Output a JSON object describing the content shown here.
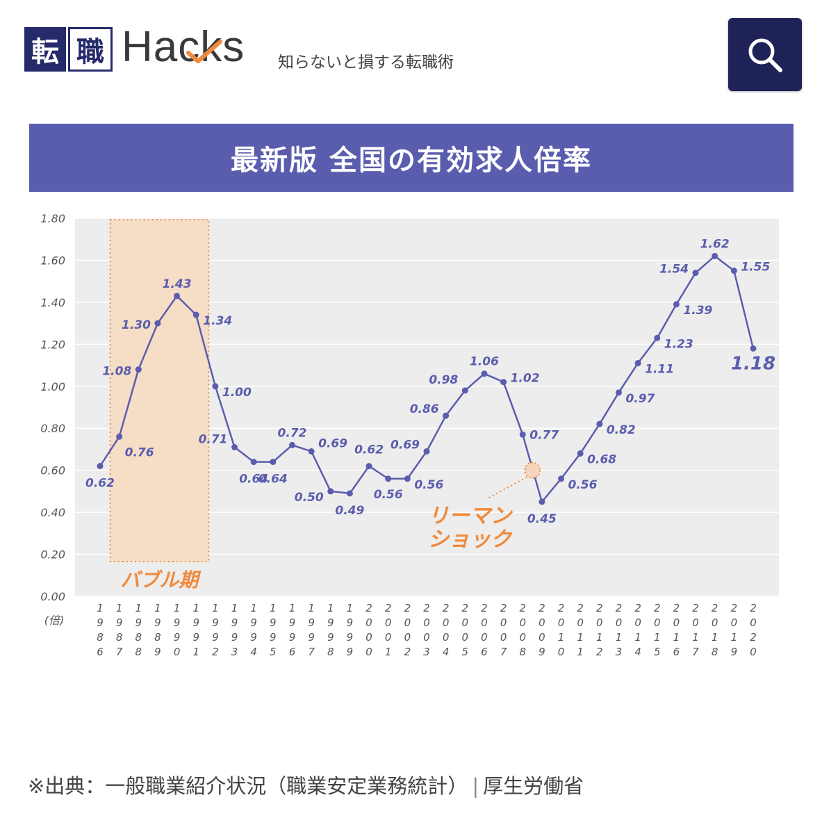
{
  "header": {
    "logo_kanji_1": "転",
    "logo_kanji_2": "職",
    "logo_word": "Hacks",
    "tagline": "知らないと損する転職術",
    "search_icon": "search-icon"
  },
  "title": "最新版 全国の有効求人倍率",
  "chart_data": {
    "type": "line",
    "ylabel": "(倍)",
    "ylim": [
      0,
      1.8
    ],
    "yticks": [
      "0.00",
      "0.20",
      "0.40",
      "0.60",
      "0.80",
      "1.00",
      "1.20",
      "1.40",
      "1.60",
      "1.80"
    ],
    "grid": true,
    "categories": [
      "1986",
      "1987",
      "1988",
      "1989",
      "1990",
      "1991",
      "1992",
      "1993",
      "1994",
      "1995",
      "1996",
      "1997",
      "1998",
      "1999",
      "2000",
      "2001",
      "2002",
      "2003",
      "2004",
      "2005",
      "2006",
      "2007",
      "2008",
      "2009",
      "2010",
      "2011",
      "2012",
      "2013",
      "2014",
      "2015",
      "2016",
      "2017",
      "2018",
      "2019",
      "2020"
    ],
    "series": [
      {
        "values": [
          0.62,
          0.76,
          1.08,
          1.3,
          1.43,
          1.34,
          1.0,
          0.71,
          0.64,
          0.64,
          0.72,
          0.69,
          0.5,
          0.49,
          0.62,
          0.56,
          0.56,
          0.69,
          0.86,
          0.98,
          1.06,
          1.02,
          0.77,
          0.45,
          0.56,
          0.68,
          0.82,
          0.97,
          1.11,
          1.23,
          1.39,
          1.54,
          1.62,
          1.55,
          1.18
        ],
        "labels": [
          "0.62",
          "0.76",
          "1.08",
          "1.30",
          "1.43",
          "1.34",
          "1.00",
          "0.71",
          "0.64",
          "0.64",
          "0.72",
          "0.69",
          "0.50",
          "0.49",
          "0.62",
          "0.56",
          "0.56",
          "0.69",
          "0.86",
          "0.98",
          "1.06",
          "1.02",
          "0.77",
          "0.45",
          "0.56",
          "0.68",
          "0.82",
          "0.97",
          "1.11",
          "1.23",
          "1.39",
          "1.54",
          "1.62",
          "1.55",
          "1.18"
        ],
        "color": "#5a5dae"
      }
    ],
    "annotations": [
      {
        "text": "バブル期",
        "from": "1987",
        "to": "1991",
        "color": "#f08a3c",
        "fill": "#f6ddc6"
      },
      {
        "text_line1": "リーマン",
        "text_line2": "ショック",
        "target": "2008",
        "color": "#f08a3c"
      }
    ]
  },
  "footer": {
    "source": "※出典：一般職業紹介状況（職業安定業務統計）",
    "separator": "|",
    "agency": "厚生労働省"
  }
}
